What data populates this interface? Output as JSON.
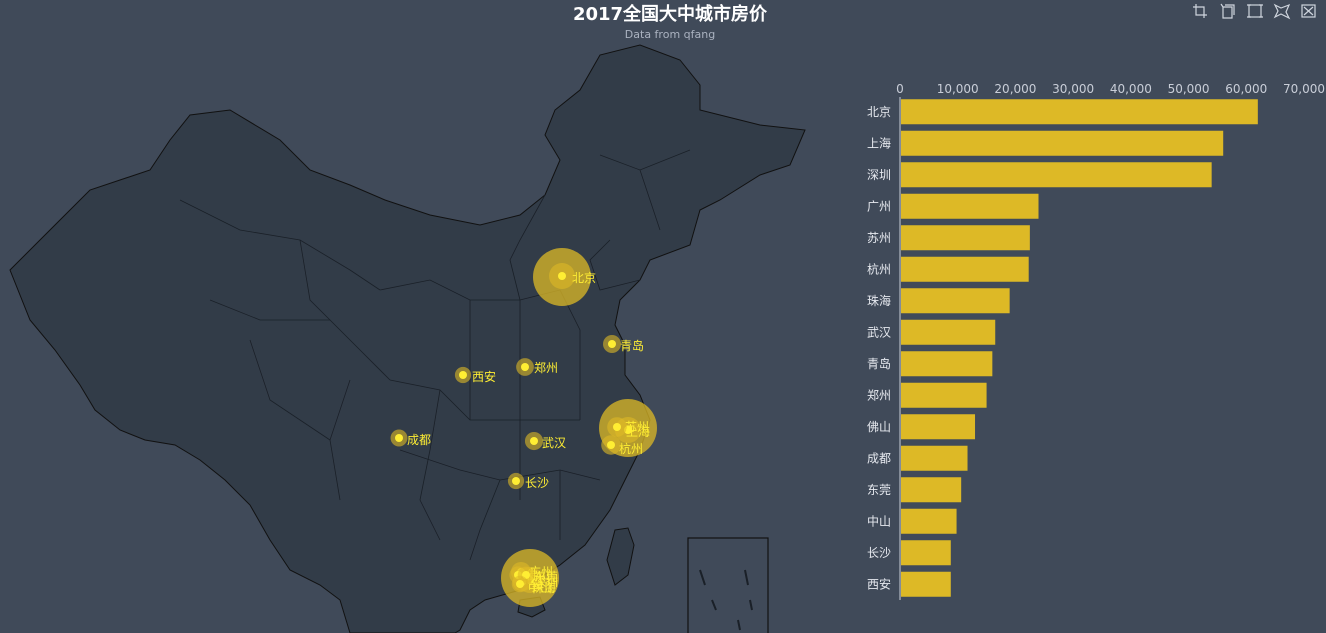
{
  "title": "2017全国大中城市房价",
  "subtitle": "Data from qfang",
  "toolbox": [
    {
      "icon": "zoom-in-icon"
    },
    {
      "icon": "zoom-reset-icon"
    },
    {
      "icon": "rect-select-icon"
    },
    {
      "icon": "lasso-select-icon"
    },
    {
      "icon": "clear-select-icon"
    },
    {
      "icon": "keep-select-icon"
    }
  ],
  "colors": {
    "background": "#404a59",
    "land": "#323c48",
    "border": "#111111",
    "bar": "#ddb926",
    "point": "#ddb926",
    "label": "#ffee33"
  },
  "chart_data": [
    {
      "type": "scatter",
      "map": "china",
      "points": [
        {
          "city": "北京",
          "value": 62000,
          "big": true
        },
        {
          "city": "上海",
          "value": 56000,
          "big": true
        },
        {
          "city": "深圳",
          "value": 54000,
          "big": true
        },
        {
          "city": "广州",
          "value": 24000
        },
        {
          "city": "苏州",
          "value": 22500
        },
        {
          "city": "杭州",
          "value": 22300
        },
        {
          "city": "珠海",
          "value": 19000
        },
        {
          "city": "武汉",
          "value": 16500
        },
        {
          "city": "青岛",
          "value": 16000
        },
        {
          "city": "郑州",
          "value": 15000
        },
        {
          "city": "佛山",
          "value": 13000
        },
        {
          "city": "成都",
          "value": 11700
        },
        {
          "city": "东莞",
          "value": 10600
        },
        {
          "city": "中山",
          "value": 9800
        },
        {
          "city": "长沙",
          "value": 8800
        },
        {
          "city": "西安",
          "value": 8800
        }
      ]
    },
    {
      "type": "bar",
      "orientation": "horizontal",
      "categories": [
        "北京",
        "上海",
        "深圳",
        "广州",
        "苏州",
        "杭州",
        "珠海",
        "武汉",
        "青岛",
        "郑州",
        "佛山",
        "成都",
        "东莞",
        "中山",
        "长沙",
        "西安"
      ],
      "values": [
        62000,
        56000,
        54000,
        24000,
        22500,
        22300,
        19000,
        16500,
        16000,
        15000,
        13000,
        11700,
        10600,
        9800,
        8800,
        8800
      ],
      "xlim": [
        0,
        70000
      ],
      "xticks": [
        0,
        10000,
        20000,
        30000,
        40000,
        50000,
        60000,
        70000
      ],
      "xtick_labels": [
        "0",
        "10,000",
        "20,000",
        "30,000",
        "40,000",
        "50,000",
        "60,000",
        "70,000"
      ],
      "axis_position": "top",
      "grid": false
    }
  ]
}
